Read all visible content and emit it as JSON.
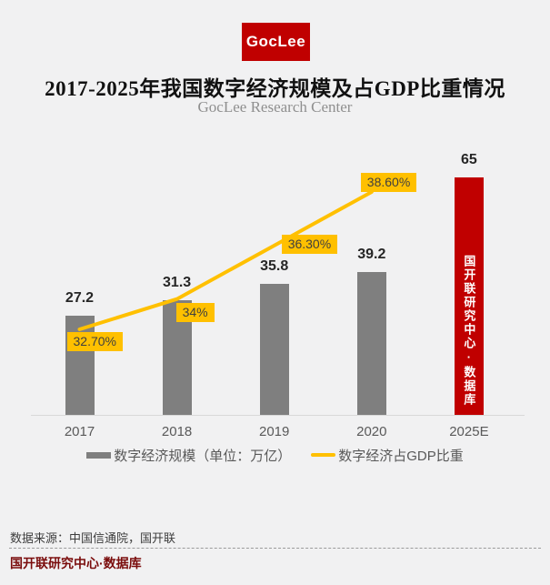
{
  "header": {
    "logo_text": "GocLee",
    "title": "2017-2025年我国数字经济规模及占GDP比重情况",
    "subtitle": "GocLee Research Center"
  },
  "chart_data": {
    "type": "bar",
    "title": "2017-2025年我国数字经济规模及占GDP比重情况",
    "categories": [
      "2017",
      "2018",
      "2019",
      "2020",
      "2025E"
    ],
    "series": [
      {
        "name": "数字经济规模（单位：万亿）",
        "kind": "bar",
        "values": [
          27.2,
          31.3,
          35.8,
          39.2,
          65
        ],
        "labels": [
          "27.2",
          "31.3",
          "35.8",
          "39.2",
          "65"
        ]
      },
      {
        "name": "数字经济占GDP比重",
        "kind": "line",
        "values": [
          32.7,
          34.0,
          36.3,
          38.6,
          null
        ],
        "labels": [
          "32.70%",
          "34%",
          "36.30%",
          "38.60%",
          ""
        ]
      }
    ],
    "highlight_category": "2025E",
    "highlight_bar_text": "国开联研究中心·数据库",
    "colors": {
      "bar": "#7F7F7F",
      "highlight_bar": "#C00000",
      "line": "#FFC000",
      "label_box": "#FFC000",
      "background": "#F1F1F2"
    },
    "xlabel": "",
    "ylabel": "",
    "grid": false,
    "legend_position": "bottom"
  },
  "legend": {
    "bar_label": "数字经济规模（单位：万亿）",
    "line_label": "数字经济占GDP比重"
  },
  "footer": {
    "source": "数据来源：中国信通院，国开联",
    "brand": "国开联研究中心·数据库"
  }
}
